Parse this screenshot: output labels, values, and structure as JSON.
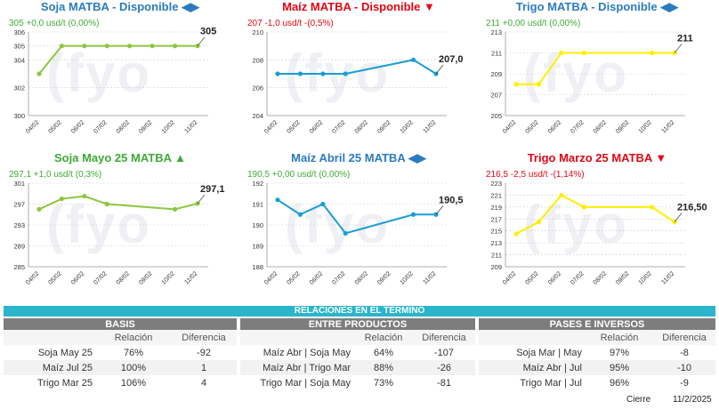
{
  "watermark": "fyo",
  "section_banner": "RELACIONES EN EL TERMINO",
  "panels": [
    {
      "title": "Soja MATBA - Disponible ◀▶",
      "title_color": "#2b7bbf",
      "subtitle": "305 +0,0 usd/t (0,00%)",
      "subtitle_color": "#3daa35",
      "last_label": "305"
    },
    {
      "title": "Maíz MATBA - Disponible ▼",
      "title_color": "#e30613",
      "subtitle": "207 -1,0 usd/t -(0,5%)",
      "subtitle_color": "#e30613",
      "last_label": "207,0"
    },
    {
      "title": "Trigo MATBA - Disponible ◀▶",
      "title_color": "#2b7bbf",
      "subtitle": "211 +0,00 usd/t (0,00%)",
      "subtitle_color": "#3daa35",
      "last_label": "211"
    },
    {
      "title": "Soja Mayo 25 MATBA ▲",
      "title_color": "#3daa35",
      "subtitle": "297,1 +1,0 usd/t (0,3%)",
      "subtitle_color": "#3daa35",
      "last_label": "297,1"
    },
    {
      "title": "Maíz Abril 25 MATBA ◀▶",
      "title_color": "#2b7bbf",
      "subtitle": "190,5 +0,00 usd/t (0,00%)",
      "subtitle_color": "#3daa35",
      "last_label": "190,5"
    },
    {
      "title": "Trigo Marzo  25 MATBA ▼",
      "title_color": "#e30613",
      "subtitle": "216,5 -2,5 usd/t -(1,14%)",
      "subtitle_color": "#e30613",
      "last_label": "216,50"
    }
  ],
  "chart_data": [
    {
      "type": "line",
      "title": "Soja MATBA - Disponible",
      "color": "#8dc63f",
      "categories": [
        "04/02",
        "05/02",
        "06/02",
        "07/02",
        "08/02",
        "09/02",
        "10/02",
        "11/02"
      ],
      "values": [
        303,
        305,
        305,
        305,
        305,
        305,
        305,
        305
      ],
      "ylim": [
        300,
        306
      ],
      "yticks": [
        "300",
        "302",
        "304",
        "305",
        "306"
      ],
      "ytick_values": [
        300,
        302,
        304,
        305,
        306
      ]
    },
    {
      "type": "line",
      "title": "Maíz MATBA - Disponible",
      "color": "#1a9dd4",
      "categories": [
        "04/02",
        "05/02",
        "06/02",
        "07/02",
        "08/02",
        "09/02",
        "10/02",
        "11/02"
      ],
      "values": [
        207,
        207,
        207,
        207,
        null,
        null,
        208,
        207
      ],
      "ylim": [
        204,
        210
      ],
      "yticks": [
        "204",
        "206",
        "208",
        "210"
      ],
      "ytick_values": [
        204,
        206,
        208,
        210
      ]
    },
    {
      "type": "line",
      "title": "Trigo MATBA - Disponible",
      "color": "#ffef00",
      "categories": [
        "04/02",
        "05/02",
        "06/02",
        "07/02",
        "08/02",
        "09/02",
        "10/02",
        "11/02"
      ],
      "values": [
        208,
        208,
        211,
        211,
        null,
        null,
        211,
        211
      ],
      "ylim": [
        205,
        213
      ],
      "yticks": [
        "205",
        "207",
        "209",
        "211",
        "213"
      ],
      "ytick_values": [
        205,
        207,
        209,
        211,
        213
      ]
    },
    {
      "type": "line",
      "title": "Soja Mayo 25 MATBA",
      "color": "#8dc63f",
      "categories": [
        "04/02",
        "05/02",
        "06/02",
        "07/02",
        "08/02",
        "09/02",
        "10/02",
        "11/02"
      ],
      "values": [
        296,
        298,
        298.5,
        297,
        null,
        null,
        296,
        297.1
      ],
      "ylim": [
        285,
        301
      ],
      "yticks": [
        "285",
        "289",
        "293",
        "297",
        "301"
      ],
      "ytick_values": [
        285,
        289,
        293,
        297,
        301
      ]
    },
    {
      "type": "line",
      "title": "Maíz Abril 25 MATBA",
      "color": "#1a9dd4",
      "categories": [
        "04/02",
        "05/02",
        "06/02",
        "07/02",
        "08/02",
        "09/02",
        "10/02",
        "11/02"
      ],
      "values": [
        191.2,
        190.5,
        191,
        189.6,
        null,
        null,
        190.5,
        190.5
      ],
      "ylim": [
        188,
        192
      ],
      "yticks": [
        "188",
        "189",
        "190",
        "191",
        "192"
      ],
      "ytick_values": [
        188,
        189,
        190,
        191,
        192
      ]
    },
    {
      "type": "line",
      "title": "Trigo Marzo  25 MATBA",
      "color": "#ffef00",
      "categories": [
        "04/02",
        "05/02",
        "06/02",
        "07/02",
        "08/02",
        "09/02",
        "10/02",
        "11/02"
      ],
      "values": [
        214.5,
        216.5,
        221,
        219,
        null,
        null,
        219,
        216.5
      ],
      "ylim": [
        209,
        223
      ],
      "yticks": [
        "209",
        "211",
        "213",
        "215",
        "217",
        "219",
        "221",
        "223"
      ],
      "ytick_values": [
        209,
        211,
        213,
        215,
        217,
        219,
        221,
        223
      ]
    }
  ],
  "tables": {
    "basis": {
      "title": "BASIS",
      "headers": [
        "",
        "Relación",
        "Diferencia"
      ],
      "rows": [
        [
          "Soja May 25",
          "76%",
          "-92"
        ],
        [
          "Maíz Jul 25",
          "100%",
          "1"
        ],
        [
          "Trigo Mar 25",
          "106%",
          "4"
        ]
      ]
    },
    "entre": {
      "title": "ENTRE PRODUCTOS",
      "headers": [
        "",
        "Relación",
        "Diferencia"
      ],
      "rows": [
        [
          "Maíz Abr | Soja May",
          "64%",
          "-107"
        ],
        [
          "Maíz Abr | Trigo Mar",
          "88%",
          "-26"
        ],
        [
          "Trigo Mar | Soja May",
          "73%",
          "-81"
        ]
      ]
    },
    "pases": {
      "title": "PASES E INVERSOS",
      "headers": [
        "",
        "Relación",
        "Diferencia"
      ],
      "rows": [
        [
          "Soja Mar | May",
          "97%",
          "-8"
        ],
        [
          "Maíz Abr | Jul",
          "95%",
          "-10"
        ],
        [
          "Trigo Mar | Jul",
          "96%",
          "-9"
        ]
      ]
    }
  },
  "footer": {
    "label": "Cierre",
    "date": "11/2/2025"
  }
}
